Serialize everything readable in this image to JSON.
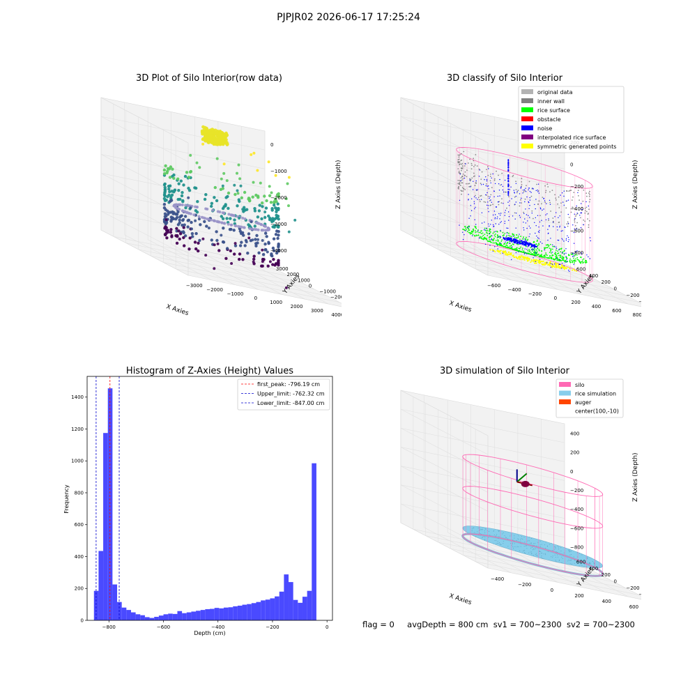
{
  "figure": {
    "suptitle": "PJPJR02 2026-06-17 17:25:24",
    "footer": {
      "flag": "flag = 0",
      "avgDepth": "avgDepth = 800 cm",
      "sv1": "sv1 = 700~2300",
      "sv2": "sv2 = 700~2300"
    }
  },
  "colors": {
    "original": "#b3b3b3",
    "inner_wall": "#808080",
    "rice_surface": "#00ff00",
    "obstacle": "#ff0000",
    "noise": "#0000ff",
    "interpolated": "#800080",
    "symmetric": "#ffff00",
    "silo": "#ff69b4",
    "rice_sim": "#87ceeb",
    "auger": "#ff4500",
    "hist_bar": "#4a4aff"
  },
  "chart_data": [
    {
      "type": "scatter",
      "title": "3D Plot of Silo Interior(row data)",
      "xlabel": "X Axies",
      "ylabel": "Y Axies",
      "zlabel": "Z Axies (Depth)",
      "xticks": [
        "−3000",
        "−2000",
        "−1000",
        "0",
        "1000",
        "2000",
        "3000",
        "4000"
      ],
      "yticks": [
        "−4000",
        "−3000",
        "−2000",
        "−1000",
        "0",
        "1000",
        "2000",
        "3000"
      ],
      "zticks": [
        "0",
        "−1000",
        "−2000",
        "−3000",
        "−4000"
      ],
      "xlim": [
        -3300,
        4300
      ],
      "ylim": [
        -4300,
        3400
      ],
      "zlim": [
        -4400,
        200
      ]
    },
    {
      "type": "scatter",
      "title": "3D classify of Silo Interior",
      "xlabel": "X Axies",
      "ylabel": "Y Axies",
      "zlabel": "Z Axies (Depth)",
      "xticks": [
        "−600",
        "−400",
        "−200",
        "0",
        "200",
        "400",
        "600",
        "800"
      ],
      "yticks": [
        "−600",
        "−400",
        "−200",
        "0",
        "200",
        "400",
        "600"
      ],
      "zticks": [
        "200",
        "0",
        "−200",
        "−400",
        "−600",
        "−800"
      ],
      "xlim": [
        -700,
        850
      ],
      "ylim": [
        -700,
        700
      ],
      "zlim": [
        -900,
        300
      ],
      "legend": [
        "original data",
        "inner wall",
        "rice surface",
        "obstacle",
        "noise",
        "interpolated rice surface",
        "symmetric generated points"
      ],
      "legend_position": "top-right"
    },
    {
      "type": "bar",
      "title": "Histogram of Z-Axies (Height) Values",
      "xlabel": "Depth (cm)",
      "ylabel": "Frequency",
      "xlim": [
        -880,
        20
      ],
      "ylim": [
        0,
        1530
      ],
      "xticks": [
        "−800",
        "−600",
        "−400",
        "−200",
        "0"
      ],
      "yticks": [
        "0",
        "200",
        "400",
        "600",
        "800",
        "1000",
        "1200",
        "1400"
      ],
      "bin_start": -855,
      "bin_width": 17,
      "values": [
        185,
        435,
        1175,
        1455,
        225,
        115,
        80,
        65,
        50,
        38,
        32,
        20,
        15,
        22,
        30,
        38,
        42,
        40,
        58,
        45,
        50,
        55,
        60,
        65,
        70,
        72,
        78,
        75,
        80,
        82,
        88,
        92,
        98,
        102,
        108,
        115,
        125,
        130,
        138,
        150,
        180,
        288,
        240,
        128,
        110,
        148,
        185,
        985
      ],
      "lines": [
        {
          "label": "first_peak: -796.19 cm",
          "x": -796.19,
          "color": "#ff0000"
        },
        {
          "label": "Upper_limit: -762.32 cm",
          "x": -762.32,
          "color": "#0000cd"
        },
        {
          "label": "Lower_limit: -847.00 cm",
          "x": -847.0,
          "color": "#0000cd"
        }
      ],
      "legend_position": "top-right"
    },
    {
      "type": "scatter",
      "title": "3D simulation of Silo Interior",
      "xlabel": "X Axies",
      "ylabel": "Y Axies",
      "zlabel": "Z Axies (Depth)",
      "xticks": [
        "−400",
        "−200",
        "0",
        "200",
        "400",
        "600"
      ],
      "yticks": [
        "−600",
        "−400",
        "−200",
        "0",
        "200",
        "400",
        "600"
      ],
      "zticks": [
        "400",
        "200",
        "0",
        "−200",
        "−400",
        "−600",
        "−800"
      ],
      "xlim": [
        -550,
        750
      ],
      "ylim": [
        -700,
        700
      ],
      "zlim": [
        -900,
        450
      ],
      "legend": [
        "silo",
        "rice simulation",
        "auger",
        "center(100,-10)"
      ],
      "legend_position": "top-right"
    }
  ]
}
